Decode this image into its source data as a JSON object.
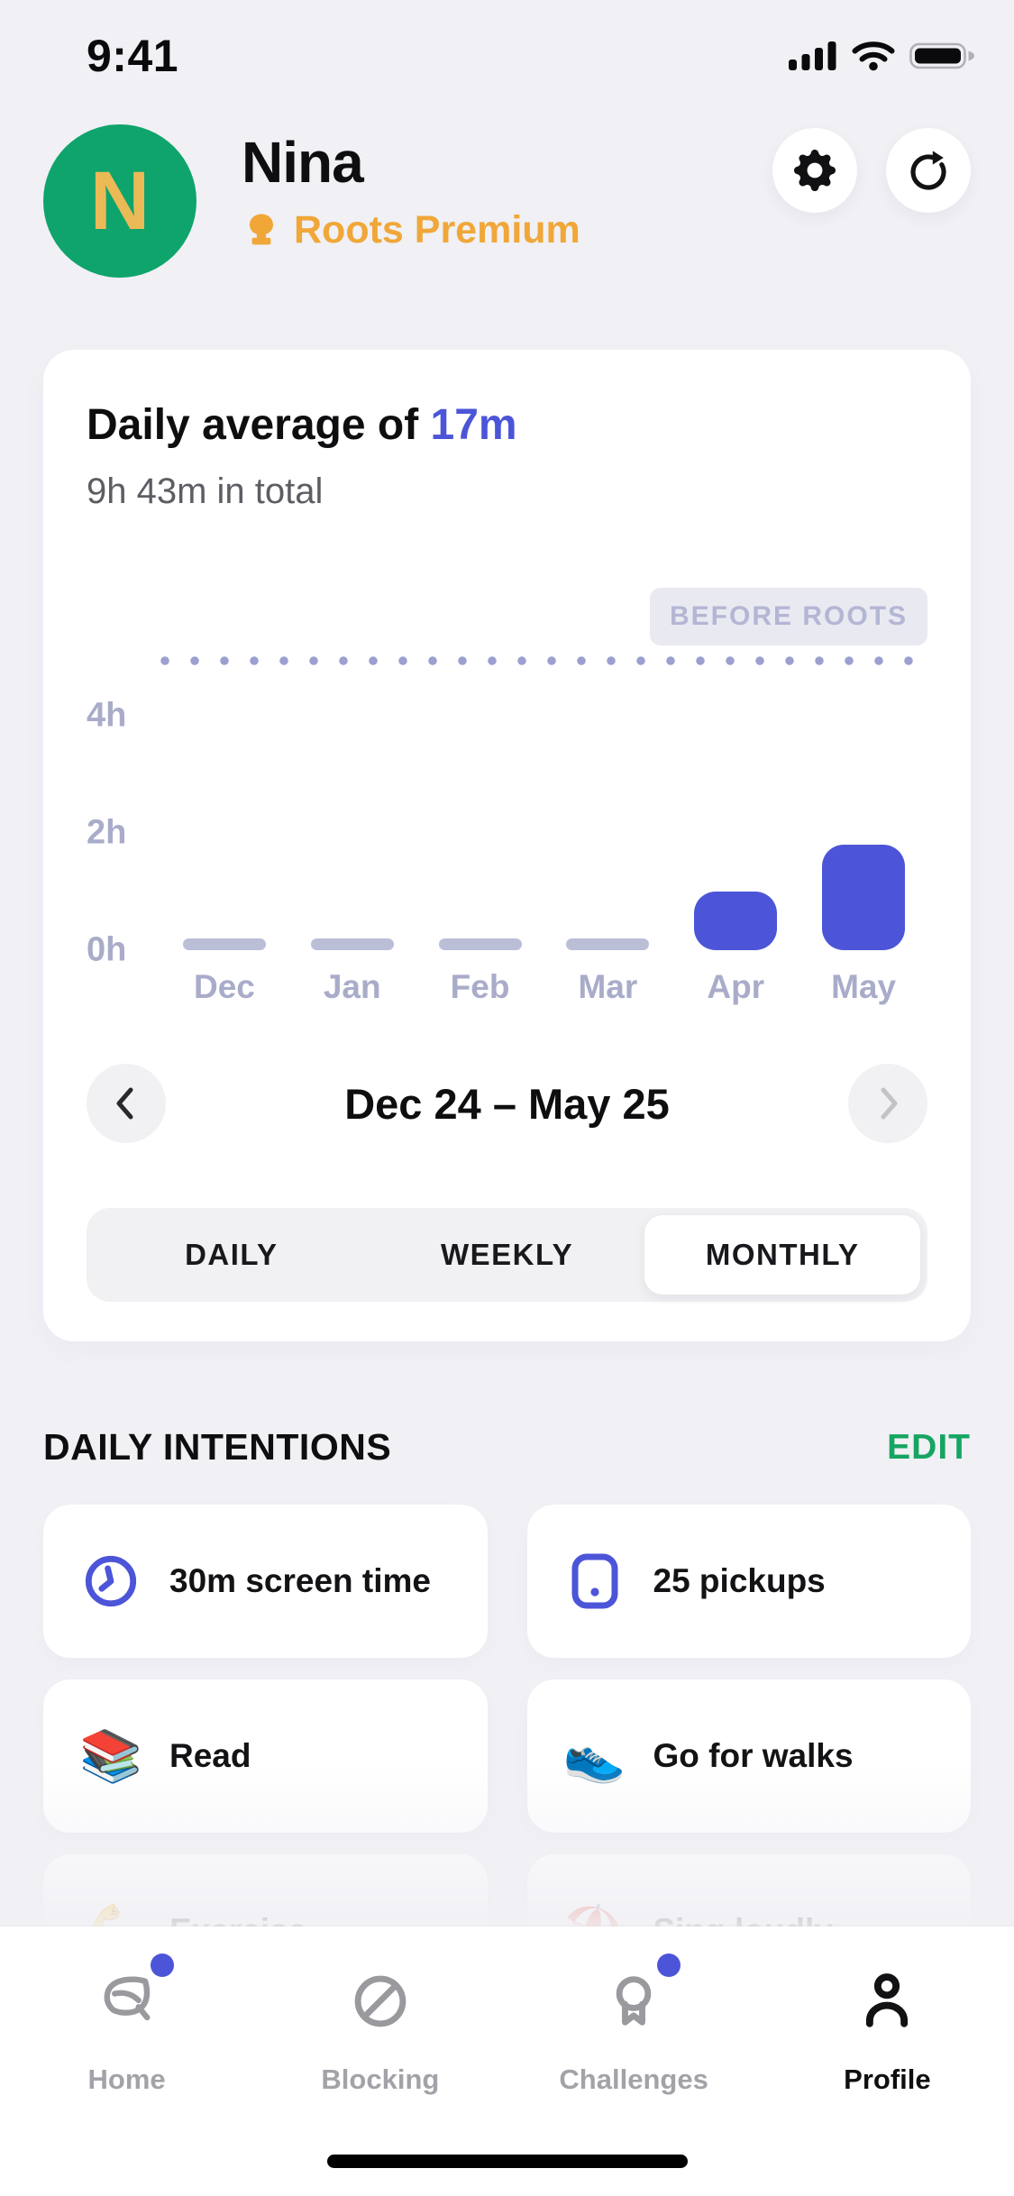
{
  "status_bar": {
    "time": "9:41",
    "icons": [
      "cellular-signal",
      "wifi",
      "battery-full"
    ]
  },
  "header": {
    "avatar_initial": "N",
    "name": "Nina",
    "premium_label": "Roots Premium",
    "actions": {
      "settings": "settings",
      "refresh": "refresh"
    }
  },
  "usage_card": {
    "title_prefix": "Daily average of ",
    "title_value": "17m",
    "subtitle": "9h 43m in total",
    "before_label": "BEFORE ROOTS",
    "period_label": "Dec 24 – May 25",
    "period_tabs": [
      {
        "label": "DAILY",
        "selected": false
      },
      {
        "label": "WEEKLY",
        "selected": false
      },
      {
        "label": "MONTHLY",
        "selected": true
      }
    ]
  },
  "chart_data": {
    "type": "bar",
    "title": "Daily average of 17m",
    "subtitle": "9h 43m in total",
    "categories": [
      "Dec",
      "Jan",
      "Feb",
      "Mar",
      "Apr",
      "May"
    ],
    "values": [
      0.1,
      0.1,
      0.1,
      0.1,
      1.0,
      1.8
    ],
    "unit": "hours",
    "bar_styles": [
      "muted",
      "muted",
      "muted",
      "muted",
      "accent",
      "accent"
    ],
    "yticks": [
      "4h",
      "2h",
      "0h"
    ],
    "ylim": [
      0,
      4
    ],
    "grid": false,
    "reference_line": {
      "label": "BEFORE ROOTS",
      "value_hours": 4.9,
      "style": "dotted"
    },
    "colors": {
      "accent_bar": "#4C55D8",
      "muted_bar": "#BBBED7",
      "dotted": "#9CA0CF",
      "axis_text": "#A9ACC9"
    }
  },
  "intentions": {
    "title": "DAILY INTENTIONS",
    "edit_label": "EDIT",
    "items": [
      {
        "label": "30m screen time",
        "icon": "clock-icon"
      },
      {
        "label": "25 pickups",
        "icon": "phone-pickup-icon"
      },
      {
        "label": "Read",
        "icon": "books-emoji",
        "icon_char": "📚"
      },
      {
        "label": "Go for walks",
        "icon": "sneaker-emoji",
        "icon_char": "👟"
      },
      {
        "label": "Exercise",
        "icon": "flexed-biceps-emoji",
        "icon_char": "💪"
      },
      {
        "label": "Sing loudly",
        "icon": "umbrella-emoji",
        "icon_char": "⛱️"
      }
    ]
  },
  "tab_bar": {
    "items": [
      {
        "label": "Home",
        "icon": "leaf-icon",
        "active": false,
        "badge": true
      },
      {
        "label": "Blocking",
        "icon": "block-icon",
        "active": false,
        "badge": false
      },
      {
        "label": "Challenges",
        "icon": "medal-icon",
        "active": false,
        "badge": true
      },
      {
        "label": "Profile",
        "icon": "person-icon",
        "active": true,
        "badge": false
      }
    ]
  },
  "colors": {
    "background": "#F0F0F5",
    "card": "#FFFFFF",
    "accent": "#4C55D8",
    "avatar_green": "#0FA46B",
    "avatar_initial_gold": "#EBBA57",
    "premium_orange": "#F0A738",
    "edit_green": "#16A561",
    "badge_bg": "#E9E9F1",
    "badge_text": "#B3B6D4",
    "tab_inactive": "#A2A2A8",
    "tab_active": "#0F0F12"
  }
}
